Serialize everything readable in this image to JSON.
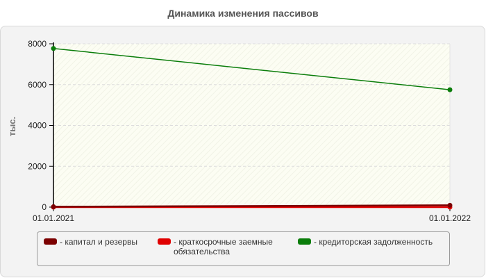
{
  "chart_data": {
    "type": "line",
    "title": "Динамика изменения пассивов",
    "ylabel": "тыс.",
    "xlabel": "",
    "x": [
      "01.01.2021",
      "01.01.2022"
    ],
    "ylim": [
      0,
      8000
    ],
    "yticks": [
      0,
      2000,
      4000,
      6000,
      8000
    ],
    "grid": true,
    "legend_position": "bottom",
    "series": [
      {
        "name": "капитал и резервы",
        "values": [
          20,
          90
        ],
        "color": "#7b0000"
      },
      {
        "name": "краткосрочные заемные обязательства",
        "values": [
          0,
          0
        ],
        "color": "#e00000"
      },
      {
        "name": "кредиторская задолженность",
        "values": [
          7770,
          5750
        ],
        "color": "#0a7d0a"
      }
    ]
  },
  "legend": {
    "items": [
      {
        "prefix": "-",
        "label": "капитал и резервы",
        "color": "#7b0000"
      },
      {
        "prefix": "-",
        "label": "краткосрочные заемные обязательства",
        "color": "#e00000"
      },
      {
        "prefix": "-",
        "label": "кредиторская задолженность",
        "color": "#0a7d0a"
      }
    ]
  }
}
